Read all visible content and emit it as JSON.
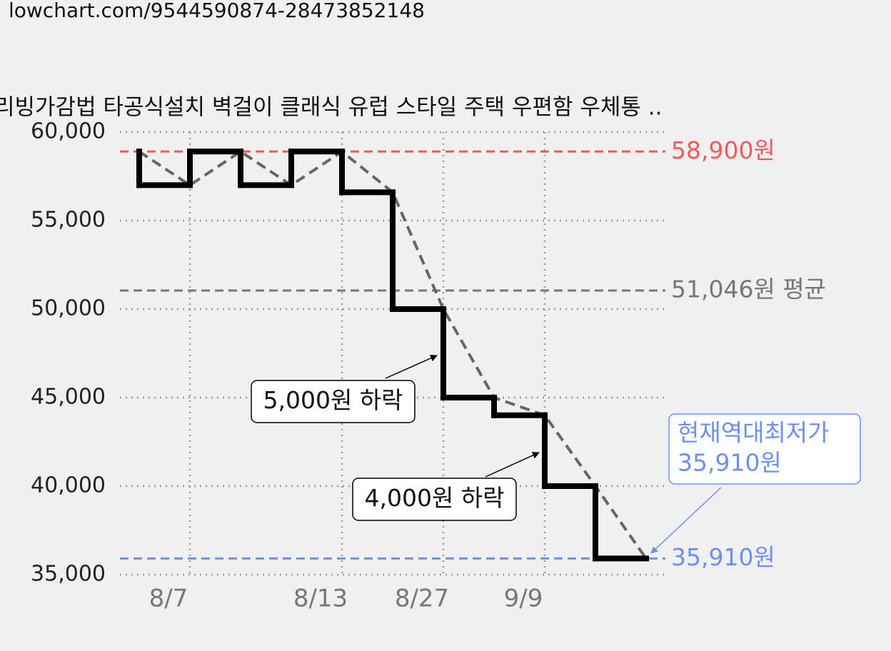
{
  "url": "lowchart.com/9544590874-28473852148",
  "chart_data": {
    "type": "step",
    "title": "리빙가감법 타공식설치 벽걸이 클래식 유럽 스타일 주택 우편함 우체통 ..",
    "categories": [
      null,
      "8/7",
      null,
      null,
      "8/13",
      null,
      "8/27",
      null,
      "9/9",
      null,
      null
    ],
    "series": [
      {
        "color": "#000000",
        "trend_color": "#666666",
        "values": [
          58900,
          57000,
          58900,
          57000,
          58900,
          56600,
          50000,
          45000,
          44000,
          40000,
          35910
        ]
      }
    ],
    "ylim": [
      35000,
      60000
    ],
    "yticks": [
      {
        "value": 35000,
        "label": "35,000"
      },
      {
        "value": 40000,
        "label": "40,000"
      },
      {
        "value": 45000,
        "label": "45,000"
      },
      {
        "value": 50000,
        "label": "50,000"
      },
      {
        "value": 55000,
        "label": "55,000"
      },
      {
        "value": 60000,
        "label": "60,000"
      }
    ],
    "grid": true,
    "reference_lines": [
      {
        "value": 58900,
        "label": "58,900원",
        "color": "#f05a5a"
      },
      {
        "value": 51046,
        "label": "51,046원 평균",
        "color": "#777777"
      },
      {
        "value": 35910,
        "label": "35,910원",
        "color": "#6f8ff0"
      }
    ],
    "annotations": [
      {
        "lines": [
          "5,000원 하락"
        ]
      },
      {
        "lines": [
          "4,000원 하락"
        ]
      },
      {
        "lines": [
          "현재역대최저가",
          "35,910원"
        ],
        "color": "#6f8ff0"
      }
    ]
  }
}
